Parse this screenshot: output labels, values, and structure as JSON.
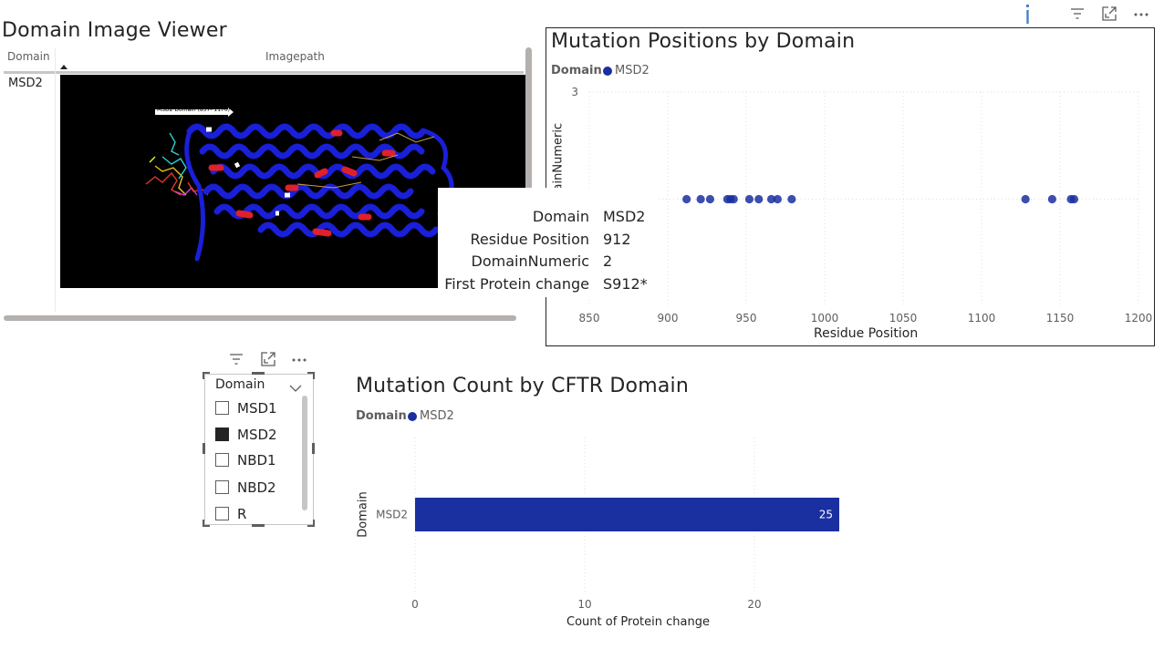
{
  "image_viewer": {
    "title": "Domain Image Viewer",
    "col_domain": "Domain",
    "col_imagepath": "Imagepath",
    "row_domain": "MSD2",
    "image_caption": "MSD2 Domain (837- 1170)"
  },
  "scatter": {
    "title": "Mutation Positions by Domain",
    "legend_label": "Domain",
    "legend_item": "MSD2",
    "y_axis_label": "DomainNumeric",
    "x_axis_label": "Residue Position",
    "tooltip": [
      {
        "key": "Domain",
        "value": "MSD2"
      },
      {
        "key": "Residue Position",
        "value": "912"
      },
      {
        "key": "DomainNumeric",
        "value": "2"
      },
      {
        "key": "First Protein change",
        "value": "S912*"
      }
    ]
  },
  "slicer": {
    "header": "Domain",
    "items": [
      {
        "label": "MSD1",
        "checked": false
      },
      {
        "label": "MSD2",
        "checked": true
      },
      {
        "label": "NBD1",
        "checked": false
      },
      {
        "label": "NBD2",
        "checked": false
      },
      {
        "label": "R",
        "checked": false
      }
    ]
  },
  "bar": {
    "title": "Mutation Count by CFTR Domain",
    "legend_label": "Domain",
    "legend_item": "MSD2"
  },
  "colors": {
    "series": "#1a2fa0",
    "info_icon": "#4a7fc8"
  },
  "icons": [
    "info-icon",
    "filter-icon",
    "focus-mode-icon",
    "more-options-icon",
    "chevron-down-icon"
  ],
  "chart_data": [
    {
      "type": "scatter",
      "title": "Mutation Positions by Domain",
      "xlabel": "Residue Position",
      "ylabel": "DomainNumeric",
      "xlim": [
        850,
        1200
      ],
      "ylim": [
        1,
        3
      ],
      "x_ticks": [
        "850",
        "900",
        "950",
        "1000",
        "1050",
        "1100",
        "1150",
        "1200"
      ],
      "y_ticks": [
        "3"
      ],
      "grid": true,
      "legend": "top-left",
      "series": [
        {
          "name": "MSD2",
          "color": "#1a2fa0",
          "x": [
            912,
            921,
            927,
            938,
            940,
            942,
            952,
            958,
            966,
            970,
            979,
            1128,
            1145,
            1157,
            1159
          ],
          "y": [
            2,
            2,
            2,
            2,
            2,
            2,
            2,
            2,
            2,
            2,
            2,
            2,
            2,
            2,
            2
          ]
        }
      ]
    },
    {
      "type": "bar",
      "orientation": "horizontal",
      "title": "Mutation Count by CFTR Domain",
      "xlabel": "Count of Protein change",
      "ylabel": "Domain",
      "xlim": [
        0,
        25
      ],
      "x_ticks": [
        "0",
        "10",
        "20"
      ],
      "grid": true,
      "legend": "top-left",
      "categories": [
        "MSD2"
      ],
      "series": [
        {
          "name": "MSD2",
          "color": "#1a2fa0",
          "values": [
            25
          ]
        }
      ],
      "data_labels": [
        "25"
      ]
    }
  ]
}
